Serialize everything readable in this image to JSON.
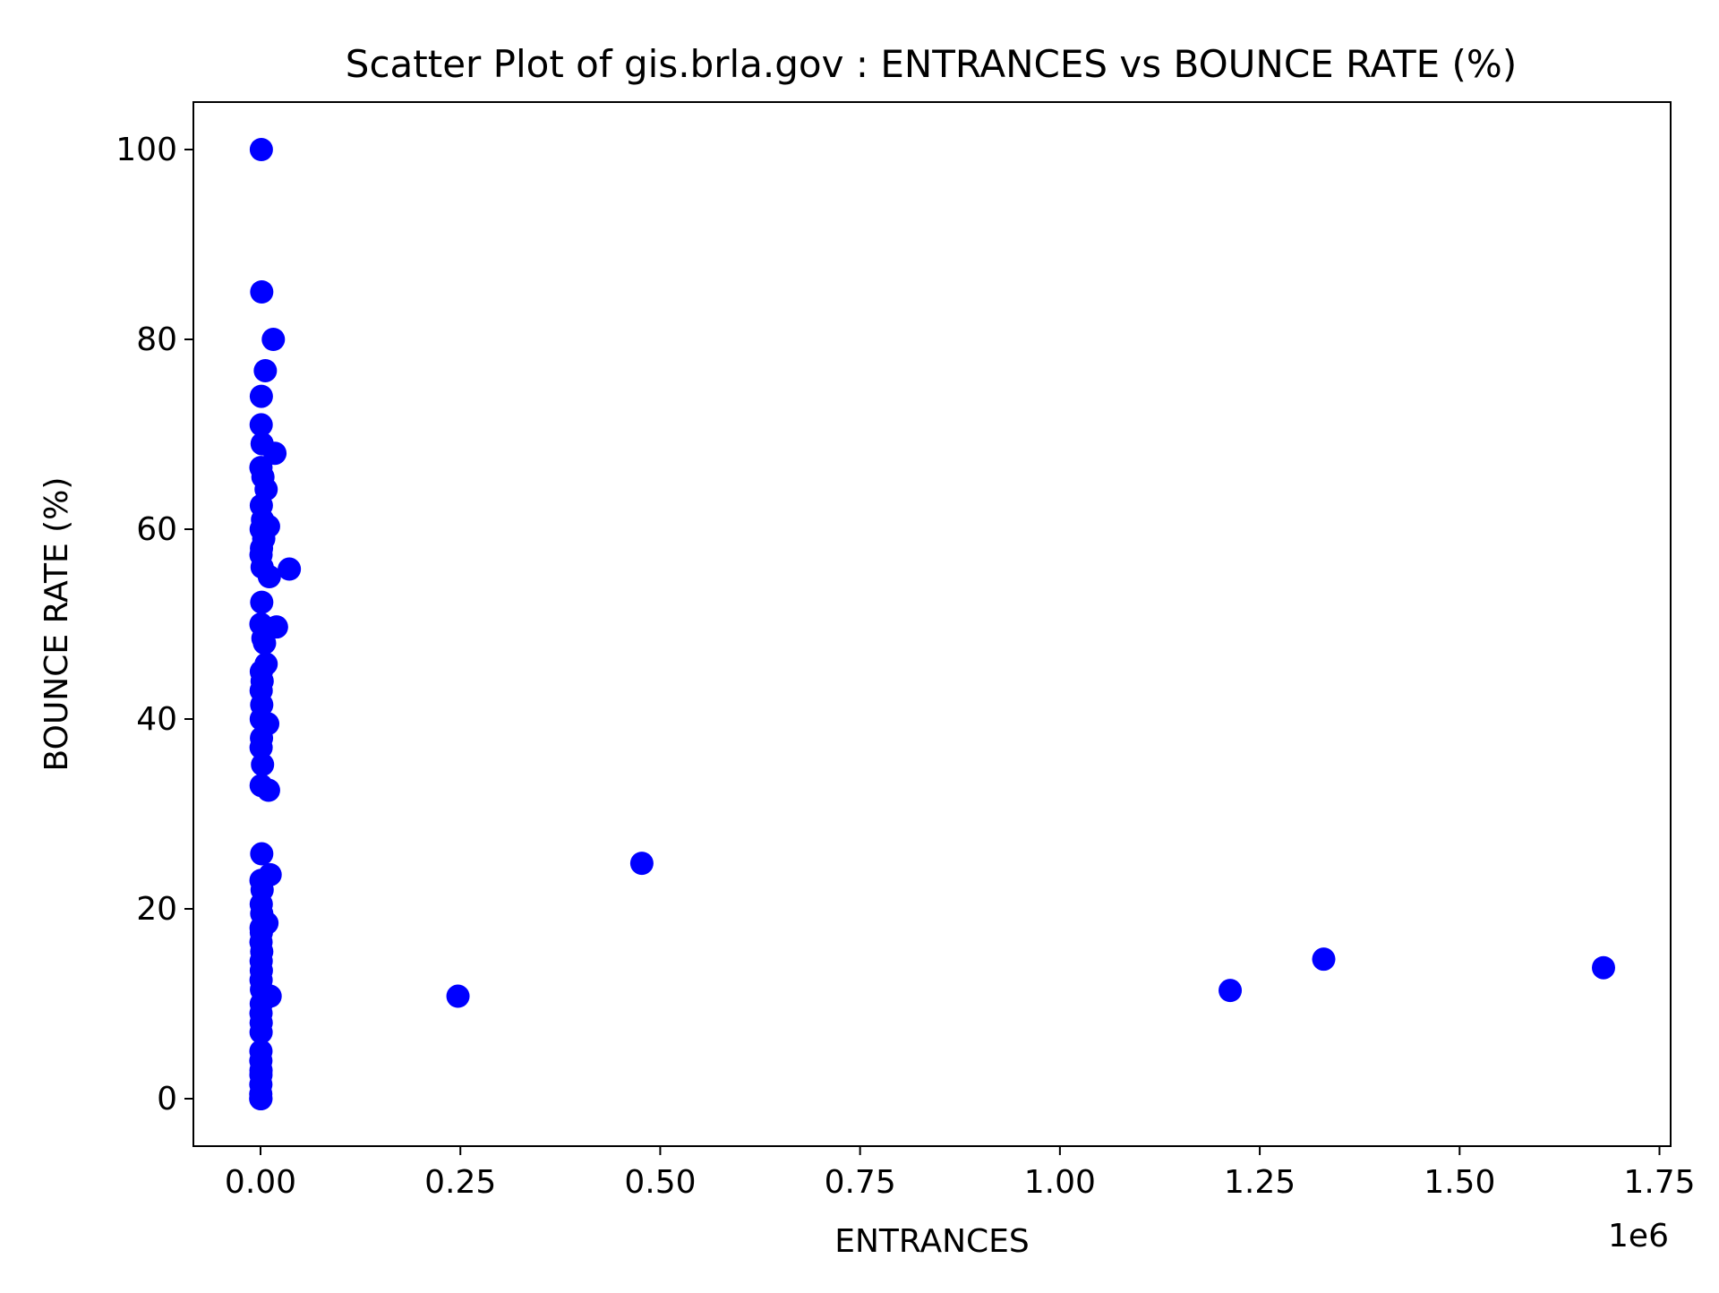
{
  "chart_data": {
    "type": "scatter",
    "title": "Scatter Plot of gis.brla.gov : ENTRANCES vs BOUNCE RATE (%)",
    "xlabel": "ENTRANCES",
    "ylabel": "BOUNCE RATE (%)",
    "x_offset_text": "1e6",
    "xlim": [
      -84000,
      1764000
    ],
    "ylim": [
      -5,
      105
    ],
    "x_ticks": [
      0,
      250000,
      500000,
      750000,
      1000000,
      1250000,
      1500000,
      1750000
    ],
    "x_tick_labels": [
      "0.00",
      "0.25",
      "0.50",
      "0.75",
      "1.00",
      "1.25",
      "1.50",
      "1.75"
    ],
    "y_ticks": [
      0,
      20,
      40,
      60,
      80,
      100
    ],
    "y_tick_labels": [
      "0",
      "20",
      "40",
      "60",
      "80",
      "100"
    ],
    "grid": false,
    "legend": "none",
    "marker_color": "#0000ff",
    "series": [
      {
        "points": [
          [
            1000,
            100
          ],
          [
            1500,
            85
          ],
          [
            16000,
            80
          ],
          [
            6000,
            76.7
          ],
          [
            1000,
            74
          ],
          [
            800,
            71
          ],
          [
            2000,
            69
          ],
          [
            18000,
            68
          ],
          [
            500,
            66.5
          ],
          [
            3000,
            65.5
          ],
          [
            7000,
            64.2
          ],
          [
            1000,
            62.5
          ],
          [
            2500,
            61
          ],
          [
            10000,
            60.3
          ],
          [
            800,
            60
          ],
          [
            4000,
            59
          ],
          [
            1200,
            58
          ],
          [
            600,
            57.3
          ],
          [
            2000,
            56
          ],
          [
            36000,
            55.8
          ],
          [
            11000,
            55
          ],
          [
            1500,
            52.3
          ],
          [
            20000,
            49.7
          ],
          [
            500,
            50
          ],
          [
            3000,
            48.5
          ],
          [
            5000,
            48
          ],
          [
            7000,
            45.8
          ],
          [
            1000,
            45
          ],
          [
            2000,
            44
          ],
          [
            800,
            43
          ],
          [
            1500,
            41.5
          ],
          [
            900,
            40
          ],
          [
            9000,
            39.5
          ],
          [
            1200,
            38
          ],
          [
            700,
            37
          ],
          [
            2500,
            35.2
          ],
          [
            800,
            33
          ],
          [
            10000,
            32.5
          ],
          [
            1500,
            25.8
          ],
          [
            12000,
            23.6
          ],
          [
            600,
            23
          ],
          [
            2000,
            22
          ],
          [
            900,
            20.5
          ],
          [
            1500,
            19.5
          ],
          [
            8000,
            18.5
          ],
          [
            700,
            18
          ],
          [
            1000,
            17.5
          ],
          [
            600,
            16.5
          ],
          [
            1500,
            15.5
          ],
          [
            800,
            14.5
          ],
          [
            1000,
            13.5
          ],
          [
            700,
            12.5
          ],
          [
            1200,
            11.5
          ],
          [
            12000,
            10.8
          ],
          [
            900,
            10
          ],
          [
            600,
            9
          ],
          [
            800,
            8
          ],
          [
            700,
            7
          ],
          [
            500,
            5
          ],
          [
            400,
            4
          ],
          [
            600,
            3
          ],
          [
            500,
            2.5
          ],
          [
            400,
            1.5
          ],
          [
            300,
            0.5
          ],
          [
            500,
            0
          ],
          [
            200,
            0
          ],
          [
            247000,
            10.8
          ],
          [
            477000,
            24.8
          ],
          [
            1213000,
            11.4
          ],
          [
            1330000,
            14.7
          ],
          [
            1680000,
            13.8
          ]
        ]
      }
    ]
  }
}
